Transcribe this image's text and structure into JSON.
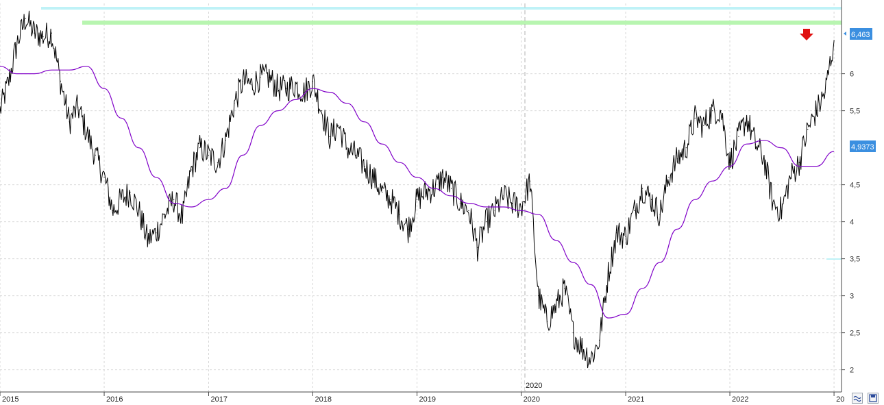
{
  "chart_data": {
    "type": "line",
    "title": "",
    "xlabel": "",
    "ylabel": "",
    "ylim": [
      1.7,
      6.95
    ],
    "xlim": [
      "2015-01-01",
      "2023-01-20"
    ],
    "x_ticks": [
      "2015",
      "2016",
      "2017",
      "2018",
      "2019",
      "2020",
      "2021",
      "2022",
      "20"
    ],
    "x_marker_label": "2020",
    "y_ticks": [
      "2",
      "2,5",
      "3",
      "3,5",
      "4",
      "4,5",
      "5,5",
      "6"
    ],
    "grid": true,
    "legend": "none",
    "price_label": "6,463",
    "ma_label": "4,9373",
    "colors": {
      "price": "#000000",
      "ma": "#8000c8",
      "label_bg": "#3b8fe0",
      "resistance_1": "#b8f0f5",
      "resistance_2": "#b0f5a8",
      "arrow": "#e01010"
    },
    "series": [
      {
        "x": [
          "2015-01-01",
          "2015-02-01",
          "2015-03-01",
          "2015-04-01",
          "2015-05-01",
          "2015-06-01",
          "2015-07-01",
          "2015-08-01",
          "2015-09-01",
          "2015-10-01",
          "2015-11-01",
          "2015-12-01",
          "2016-01-01",
          "2016-02-01",
          "2016-03-01",
          "2016-04-01",
          "2016-05-01",
          "2016-06-01",
          "2016-07-01",
          "2016-08-01",
          "2016-09-01",
          "2016-10-01",
          "2016-11-01",
          "2016-12-01",
          "2017-01-01",
          "2017-02-01",
          "2017-03-01",
          "2017-04-01",
          "2017-05-01",
          "2017-06-01",
          "2017-07-01",
          "2017-08-01",
          "2017-09-01",
          "2017-10-01",
          "2017-11-01",
          "2017-12-01",
          "2018-01-01",
          "2018-02-01",
          "2018-03-01",
          "2018-04-01",
          "2018-05-01",
          "2018-06-01",
          "2018-07-01",
          "2018-08-01",
          "2018-09-01",
          "2018-10-01",
          "2018-11-01",
          "2018-12-01",
          "2019-01-01",
          "2019-02-01",
          "2019-03-01",
          "2019-04-01",
          "2019-05-01",
          "2019-06-01",
          "2019-07-01",
          "2019-08-01",
          "2019-09-01",
          "2019-10-01",
          "2019-11-01",
          "2019-12-01",
          "2020-01-01",
          "2020-02-01",
          "2020-03-01",
          "2020-04-01",
          "2020-05-01",
          "2020-06-01",
          "2020-07-01",
          "2020-08-01",
          "2020-09-01",
          "2020-10-01",
          "2020-11-01",
          "2020-12-01",
          "2021-01-01",
          "2021-02-01",
          "2021-03-01",
          "2021-04-01",
          "2021-05-01",
          "2021-06-01",
          "2021-07-01",
          "2021-08-01",
          "2021-09-01",
          "2021-10-01",
          "2021-11-01",
          "2021-12-01",
          "2022-01-01",
          "2022-02-01",
          "2022-03-01",
          "2022-04-01",
          "2022-05-01",
          "2022-06-01",
          "2022-07-01",
          "2022-08-01",
          "2022-09-01",
          "2022-10-01",
          "2022-11-01",
          "2022-12-01",
          "2023-01-01"
        ],
        "values": [
          5.5,
          5.9,
          6.4,
          6.75,
          6.55,
          6.5,
          6.55,
          5.9,
          5.35,
          5.55,
          5.2,
          4.9,
          4.6,
          4.15,
          4.3,
          4.4,
          4.15,
          3.75,
          3.85,
          4.1,
          4.3,
          4.05,
          4.7,
          5.0,
          4.9,
          4.8,
          5.1,
          5.6,
          5.9,
          5.85,
          5.95,
          5.95,
          5.8,
          5.8,
          5.85,
          5.75,
          5.9,
          5.5,
          5.15,
          5.3,
          5.0,
          4.9,
          4.75,
          4.6,
          4.4,
          4.3,
          4.1,
          3.9,
          4.3,
          4.4,
          4.45,
          4.6,
          4.45,
          4.25,
          4.15,
          3.65,
          4.0,
          4.15,
          4.35,
          4.25,
          4.2,
          4.55,
          3.0,
          2.65,
          2.85,
          3.1,
          2.5,
          2.3,
          2.15,
          2.4,
          3.3,
          3.85,
          3.8,
          4.15,
          4.45,
          4.3,
          4.1,
          4.6,
          4.85,
          5.0,
          5.4,
          5.3,
          5.5,
          5.5,
          4.8,
          5.15,
          5.4,
          5.05,
          4.85,
          4.25,
          4.15,
          4.6,
          4.8,
          5.25,
          5.5,
          5.75,
          6.45
        ]
      },
      {
        "x": [
          "2015-01-01",
          "2015-03-01",
          "2015-05-01",
          "2015-07-01",
          "2015-09-01",
          "2015-11-01",
          "2016-01-01",
          "2016-03-01",
          "2016-05-01",
          "2016-07-01",
          "2016-09-01",
          "2016-11-01",
          "2017-01-01",
          "2017-03-01",
          "2017-05-01",
          "2017-07-01",
          "2017-09-01",
          "2017-11-01",
          "2018-01-01",
          "2018-03-01",
          "2018-05-01",
          "2018-07-01",
          "2018-09-01",
          "2018-11-01",
          "2019-01-01",
          "2019-03-01",
          "2019-05-01",
          "2019-07-01",
          "2019-09-01",
          "2019-11-01",
          "2020-01-01",
          "2020-03-01",
          "2020-05-01",
          "2020-07-01",
          "2020-09-01",
          "2020-11-01",
          "2021-01-01",
          "2021-03-01",
          "2021-05-01",
          "2021-07-01",
          "2021-09-01",
          "2021-11-01",
          "2022-01-01",
          "2022-03-01",
          "2022-05-01",
          "2022-07-01",
          "2022-09-01",
          "2022-11-01",
          "2023-01-01"
        ],
        "values": [
          6.1,
          6.0,
          6.0,
          6.05,
          6.05,
          6.1,
          5.8,
          5.4,
          5.0,
          4.6,
          4.25,
          4.2,
          4.3,
          4.45,
          4.9,
          5.3,
          5.5,
          5.65,
          5.8,
          5.75,
          5.6,
          5.35,
          5.05,
          4.8,
          4.6,
          4.45,
          4.35,
          4.25,
          4.2,
          4.2,
          4.15,
          4.1,
          3.75,
          3.45,
          3.15,
          2.7,
          2.75,
          3.1,
          3.45,
          3.9,
          4.3,
          4.55,
          4.75,
          5.05,
          5.1,
          5.0,
          4.75,
          4.75,
          4.95
        ]
      }
    ]
  }
}
